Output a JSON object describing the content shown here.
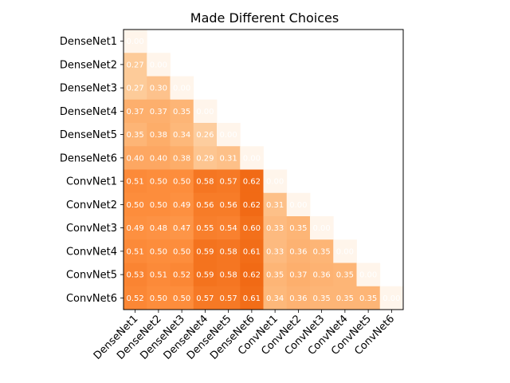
{
  "chart_data": {
    "type": "heatmap",
    "title": "Made Different Choices",
    "xlabel": "",
    "ylabel": "",
    "labels": [
      "DenseNet1",
      "DenseNet2",
      "DenseNet3",
      "DenseNet4",
      "DenseNet5",
      "DenseNet6",
      "ConvNet1",
      "ConvNet2",
      "ConvNet3",
      "ConvNet4",
      "ConvNet5",
      "ConvNet6"
    ],
    "matrix": [
      [
        0.0
      ],
      [
        0.27,
        0.0
      ],
      [
        0.27,
        0.3,
        0.0
      ],
      [
        0.37,
        0.37,
        0.35,
        0.0
      ],
      [
        0.35,
        0.38,
        0.34,
        0.26,
        0.0
      ],
      [
        0.4,
        0.4,
        0.38,
        0.29,
        0.31,
        0.0
      ],
      [
        0.51,
        0.5,
        0.5,
        0.58,
        0.57,
        0.62,
        0.0
      ],
      [
        0.5,
        0.5,
        0.49,
        0.56,
        0.56,
        0.62,
        0.31,
        0.0
      ],
      [
        0.49,
        0.48,
        0.47,
        0.55,
        0.54,
        0.6,
        0.33,
        0.35,
        0.0
      ],
      [
        0.51,
        0.5,
        0.5,
        0.59,
        0.58,
        0.61,
        0.33,
        0.36,
        0.35,
        0.0
      ],
      [
        0.53,
        0.51,
        0.52,
        0.59,
        0.58,
        0.62,
        0.35,
        0.37,
        0.36,
        0.35,
        0.0
      ],
      [
        0.52,
        0.5,
        0.5,
        0.57,
        0.57,
        0.61,
        0.34,
        0.36,
        0.35,
        0.35,
        0.35,
        0.0
      ]
    ],
    "value_format": "2 decimals",
    "colormap": "Oranges",
    "color_range": [
      0,
      1
    ],
    "grid": false,
    "legend": "none"
  }
}
